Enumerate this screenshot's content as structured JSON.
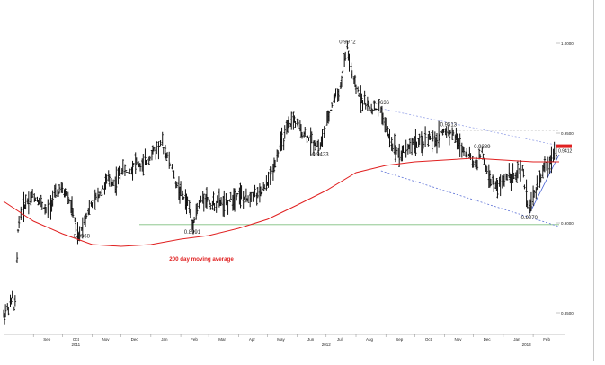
{
  "chart_data": {
    "type": "line",
    "style": "ohlc-bar",
    "title": "",
    "xlabel": "",
    "ylabel": "",
    "ylim": [
      0.84,
      1.004
    ],
    "x_domain": [
      "2011-08-01",
      "2013-02-28"
    ],
    "x_tick_labels": [
      {
        "label": "Sep",
        "date": "2011-09-15"
      },
      {
        "label": "Oct",
        "date": "2011-10-15"
      },
      {
        "label": "Nov",
        "date": "2011-11-15"
      },
      {
        "label": "Dec",
        "date": "2011-12-15"
      },
      {
        "label": "Jan",
        "date": "2012-01-15"
      },
      {
        "label": "Feb",
        "date": "2012-02-15"
      },
      {
        "label": "Mar",
        "date": "2012-03-15"
      },
      {
        "label": "Apr",
        "date": "2012-04-15"
      },
      {
        "label": "May",
        "date": "2012-05-15"
      },
      {
        "label": "Jun",
        "date": "2012-06-15"
      },
      {
        "label": "Jul",
        "date": "2012-07-15"
      },
      {
        "label": "Aug",
        "date": "2012-08-15"
      },
      {
        "label": "Sep",
        "date": "2012-09-15"
      },
      {
        "label": "Oct",
        "date": "2012-10-15"
      },
      {
        "label": "Nov",
        "date": "2012-11-15"
      },
      {
        "label": "Dec",
        "date": "2012-12-15"
      },
      {
        "label": "Jan",
        "date": "2013-01-15"
      },
      {
        "label": "Feb",
        "date": "2013-02-15"
      }
    ],
    "year_labels": [
      {
        "label": "2011",
        "date": "2011-10-15"
      },
      {
        "label": "2012",
        "date": "2012-07-01"
      },
      {
        "label": "2013",
        "date": "2013-01-25"
      }
    ],
    "y_tick_labels": [
      {
        "label": "1.0000",
        "value": 1.0
      },
      {
        "label": "0.9500",
        "value": 0.95
      },
      {
        "label": "0.9000",
        "value": 0.9
      },
      {
        "label": "0.8500",
        "value": 0.85
      }
    ],
    "last_price_label": "0.9412",
    "price_path": [
      [
        "2011-08-01",
        0.848
      ],
      [
        "2011-08-05",
        0.852
      ],
      [
        "2011-08-09",
        0.855
      ],
      [
        "2011-08-11",
        0.86
      ],
      [
        "2011-08-13",
        0.846
      ],
      [
        "2011-08-16",
        0.895
      ],
      [
        "2011-08-19",
        0.905
      ],
      [
        "2011-08-25",
        0.912
      ],
      [
        "2011-09-01",
        0.915
      ],
      [
        "2011-09-08",
        0.912
      ],
      [
        "2011-09-15",
        0.906
      ],
      [
        "2011-09-22",
        0.914
      ],
      [
        "2011-09-29",
        0.918
      ],
      [
        "2011-10-06",
        0.916
      ],
      [
        "2011-10-13",
        0.905
      ],
      [
        "2011-10-18",
        0.89
      ],
      [
        "2011-10-21",
        0.8968
      ],
      [
        "2011-10-28",
        0.907
      ],
      [
        "2011-11-04",
        0.912
      ],
      [
        "2011-11-11",
        0.918
      ],
      [
        "2011-11-18",
        0.924
      ],
      [
        "2011-11-25",
        0.922
      ],
      [
        "2011-12-02",
        0.93
      ],
      [
        "2011-12-09",
        0.928
      ],
      [
        "2011-12-16",
        0.934
      ],
      [
        "2011-12-23",
        0.931
      ],
      [
        "2011-12-30",
        0.936
      ],
      [
        "2012-01-06",
        0.941
      ],
      [
        "2012-01-13",
        0.944
      ],
      [
        "2012-01-20",
        0.935
      ],
      [
        "2012-01-27",
        0.923
      ],
      [
        "2012-02-03",
        0.915
      ],
      [
        "2012-02-10",
        0.91
      ],
      [
        "2012-02-13",
        0.8991
      ],
      [
        "2012-02-20",
        0.91
      ],
      [
        "2012-02-27",
        0.915
      ],
      [
        "2012-03-05",
        0.91
      ],
      [
        "2012-03-12",
        0.912
      ],
      [
        "2012-03-19",
        0.91
      ],
      [
        "2012-03-26",
        0.914
      ],
      [
        "2012-04-02",
        0.917
      ],
      [
        "2012-04-09",
        0.912
      ],
      [
        "2012-04-16",
        0.917
      ],
      [
        "2012-04-23",
        0.915
      ],
      [
        "2012-04-30",
        0.92
      ],
      [
        "2012-05-07",
        0.93
      ],
      [
        "2012-05-14",
        0.942
      ],
      [
        "2012-05-21",
        0.95
      ],
      [
        "2012-05-28",
        0.958
      ],
      [
        "2012-06-04",
        0.952
      ],
      [
        "2012-06-11",
        0.948
      ],
      [
        "2012-06-18",
        0.945
      ],
      [
        "2012-06-25",
        0.9423
      ],
      [
        "2012-07-02",
        0.955
      ],
      [
        "2012-07-09",
        0.968
      ],
      [
        "2012-07-16",
        0.975
      ],
      [
        "2012-07-23",
        0.9972
      ],
      [
        "2012-07-30",
        0.978
      ],
      [
        "2012-08-06",
        0.97
      ],
      [
        "2012-08-13",
        0.965
      ],
      [
        "2012-08-20",
        0.963
      ],
      [
        "2012-08-27",
        0.9636
      ],
      [
        "2012-09-03",
        0.95
      ],
      [
        "2012-09-10",
        0.942
      ],
      [
        "2012-09-17",
        0.938
      ],
      [
        "2012-09-24",
        0.942
      ],
      [
        "2012-10-01",
        0.945
      ],
      [
        "2012-10-08",
        0.943
      ],
      [
        "2012-10-15",
        0.948
      ],
      [
        "2012-10-22",
        0.945
      ],
      [
        "2012-10-29",
        0.95
      ],
      [
        "2012-11-05",
        0.9513
      ],
      [
        "2012-11-12",
        0.948
      ],
      [
        "2012-11-19",
        0.942
      ],
      [
        "2012-11-26",
        0.938
      ],
      [
        "2012-12-03",
        0.932
      ],
      [
        "2012-12-10",
        0.9389
      ],
      [
        "2012-12-17",
        0.926
      ],
      [
        "2012-12-24",
        0.92
      ],
      [
        "2012-12-31",
        0.922
      ],
      [
        "2013-01-07",
        0.928
      ],
      [
        "2013-01-14",
        0.925
      ],
      [
        "2013-01-21",
        0.93
      ],
      [
        "2013-01-28",
        0.907
      ],
      [
        "2013-02-04",
        0.918
      ],
      [
        "2013-02-11",
        0.928
      ],
      [
        "2013-02-18",
        0.934
      ],
      [
        "2013-02-25",
        0.9412
      ]
    ],
    "series": [
      {
        "name": "200 day moving average",
        "color": "#e02020",
        "points": [
          [
            "2011-08-01",
            0.912
          ],
          [
            "2011-09-01",
            0.901
          ],
          [
            "2011-10-01",
            0.894
          ],
          [
            "2011-11-01",
            0.888
          ],
          [
            "2011-12-01",
            0.887
          ],
          [
            "2012-01-01",
            0.888
          ],
          [
            "2012-02-01",
            0.891
          ],
          [
            "2012-03-01",
            0.893
          ],
          [
            "2012-04-01",
            0.897
          ],
          [
            "2012-05-01",
            0.902
          ],
          [
            "2012-06-01",
            0.91
          ],
          [
            "2012-07-01",
            0.918
          ],
          [
            "2012-08-01",
            0.928
          ],
          [
            "2012-09-01",
            0.932
          ],
          [
            "2012-10-01",
            0.934
          ],
          [
            "2012-11-01",
            0.935
          ],
          [
            "2012-12-01",
            0.936
          ],
          [
            "2013-01-01",
            0.935
          ],
          [
            "2013-02-01",
            0.934
          ],
          [
            "2013-02-28",
            0.934
          ]
        ]
      }
    ],
    "reference_lines": [
      {
        "name": "support-line",
        "color": "#7fbf7f",
        "points": [
          [
            "2011-12-20",
            0.8991
          ],
          [
            "2013-02-28",
            0.8991
          ]
        ]
      },
      {
        "name": "upper-channel-line",
        "color": "#9aa6e8",
        "points": [
          [
            "2012-08-27",
            0.9636
          ],
          [
            "2013-02-28",
            0.943
          ]
        ]
      },
      {
        "name": "lower-channel-line",
        "color": "#5a6fd6",
        "points": [
          [
            "2012-08-27",
            0.929
          ],
          [
            "2013-02-28",
            0.898
          ]
        ]
      },
      {
        "name": "resistance-line",
        "color": "#d8d8d8",
        "points": [
          [
            "2012-11-05",
            0.9513
          ],
          [
            "2013-02-28",
            0.9513
          ]
        ]
      },
      {
        "name": "short-uptrend-line",
        "color": "#3a55d0",
        "points": [
          [
            "2013-01-28",
            0.905
          ],
          [
            "2013-02-28",
            0.938
          ]
        ]
      }
    ],
    "annotations": [
      {
        "label": "0.8968",
        "date": "2011-10-21",
        "value": 0.8968,
        "position": "below"
      },
      {
        "label": "0.8991",
        "date": "2012-02-13",
        "value": 0.8991,
        "position": "below"
      },
      {
        "label": "0.9423",
        "date": "2012-06-25",
        "value": 0.9423,
        "position": "below"
      },
      {
        "label": "0.9972",
        "date": "2012-07-23",
        "value": 0.9972,
        "position": "above"
      },
      {
        "label": "0.9636",
        "date": "2012-08-27",
        "value": 0.9636,
        "position": "above"
      },
      {
        "label": "0.9513",
        "date": "2012-11-05",
        "value": 0.9513,
        "position": "above"
      },
      {
        "label": "0.9389",
        "date": "2012-12-10",
        "value": 0.9389,
        "position": "above"
      },
      {
        "label": "0.9070",
        "date": "2013-01-28",
        "value": 0.907,
        "position": "below"
      }
    ],
    "ma_label": {
      "text": "200 day moving average",
      "color": "#e02020",
      "date": "2012-01-20",
      "value": 0.879
    },
    "grid": false,
    "legend": "none"
  }
}
